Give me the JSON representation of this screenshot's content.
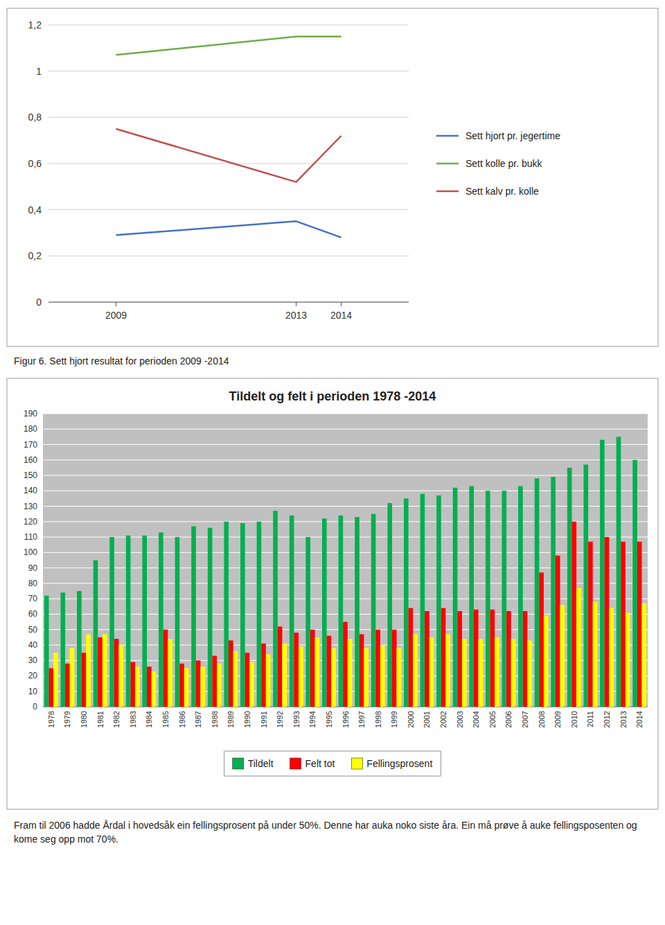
{
  "chart_data": [
    {
      "type": "line",
      "title": "Figur 6. Sett hjort resultat for perioden 2009 -2014",
      "x": [
        2009,
        2013,
        2014
      ],
      "xlim": [
        2007.5,
        2015.5
      ],
      "xticks": [
        2009,
        2013,
        2014
      ],
      "series": [
        {
          "name": "Sett hjort pr. jegertime",
          "color": "#4472C4",
          "values": [
            0.29,
            0.35,
            0.28
          ]
        },
        {
          "name": "Sett kolle pr. bukk",
          "color": "#70AD47",
          "values": [
            1.07,
            1.15,
            1.15
          ]
        },
        {
          "name": "Sett kalv pr. kolle",
          "color": "#C0504D",
          "values": [
            0.75,
            0.52,
            0.72
          ]
        }
      ],
      "ylim": [
        0,
        1.2
      ],
      "yticks": [
        0,
        {
          "value": 0.2,
          "label": "0,2"
        },
        {
          "value": 0.4,
          "label": "0,4"
        },
        {
          "value": 0.6,
          "label": "0,6"
        },
        {
          "value": 0.8,
          "label": "0,8"
        },
        1,
        {
          "value": 1.2,
          "label": "1,2"
        }
      ],
      "grid": true,
      "legend": "right"
    },
    {
      "type": "bar",
      "title": "Tildelt og felt i perioden 1978 -2014",
      "categories": [
        "1978",
        "1979",
        "1980",
        "1981",
        "1982",
        "1983",
        "1984",
        "1985",
        "1986",
        "1987",
        "1988",
        "1989",
        "1990",
        "1991",
        "1992",
        "1993",
        "1994",
        "1995",
        "1996",
        "1997",
        "1998",
        "1999",
        "2000",
        "2001",
        "2002",
        "2003",
        "2004",
        "2005",
        "2006",
        "2007",
        "2008",
        "2009",
        "2010",
        "2011",
        "2012",
        "2013",
        "2014"
      ],
      "series": [
        {
          "name": "Tildelt",
          "color": "#00B050",
          "values": [
            72,
            74,
            75,
            95,
            110,
            111,
            111,
            113,
            110,
            117,
            116,
            120,
            119,
            120,
            127,
            124,
            110,
            122,
            124,
            123,
            125,
            132,
            135,
            138,
            137,
            142,
            143,
            140,
            140,
            143,
            148,
            149,
            155,
            157,
            173,
            175,
            160
          ]
        },
        {
          "name": "Felt tot",
          "color": "#FF0000",
          "values": [
            25,
            28,
            35,
            45,
            44,
            29,
            26,
            50,
            28,
            30,
            33,
            43,
            35,
            41,
            52,
            48,
            50,
            46,
            55,
            47,
            50,
            50,
            64,
            62,
            64,
            62,
            63,
            63,
            62,
            62,
            87,
            98,
            120,
            107,
            110,
            107,
            107
          ]
        },
        {
          "name": "Fellingsprosent",
          "color": "#FFFF00",
          "values": [
            35,
            38,
            47,
            47,
            40,
            26,
            23,
            44,
            25,
            26,
            28,
            36,
            29,
            34,
            41,
            39,
            45,
            38,
            44,
            38,
            40,
            38,
            47,
            45,
            47,
            44,
            44,
            45,
            44,
            43,
            59,
            66,
            77,
            68,
            64,
            61,
            67
          ]
        }
      ],
      "ylim": [
        0,
        190
      ],
      "yticks": [
        0,
        10,
        20,
        30,
        40,
        50,
        60,
        70,
        80,
        90,
        100,
        110,
        120,
        130,
        140,
        150,
        160,
        170,
        180,
        190
      ],
      "grid": true,
      "legend": "bottom",
      "annotations": [
        "Fram til 2006 hadde Årdal i hovedsåk ein fellingsprosent på under 50%. Denne har auka noko siste åra. Ein må prøve å auke fellingsposenten og kome seg opp mot 70%."
      ]
    }
  ]
}
